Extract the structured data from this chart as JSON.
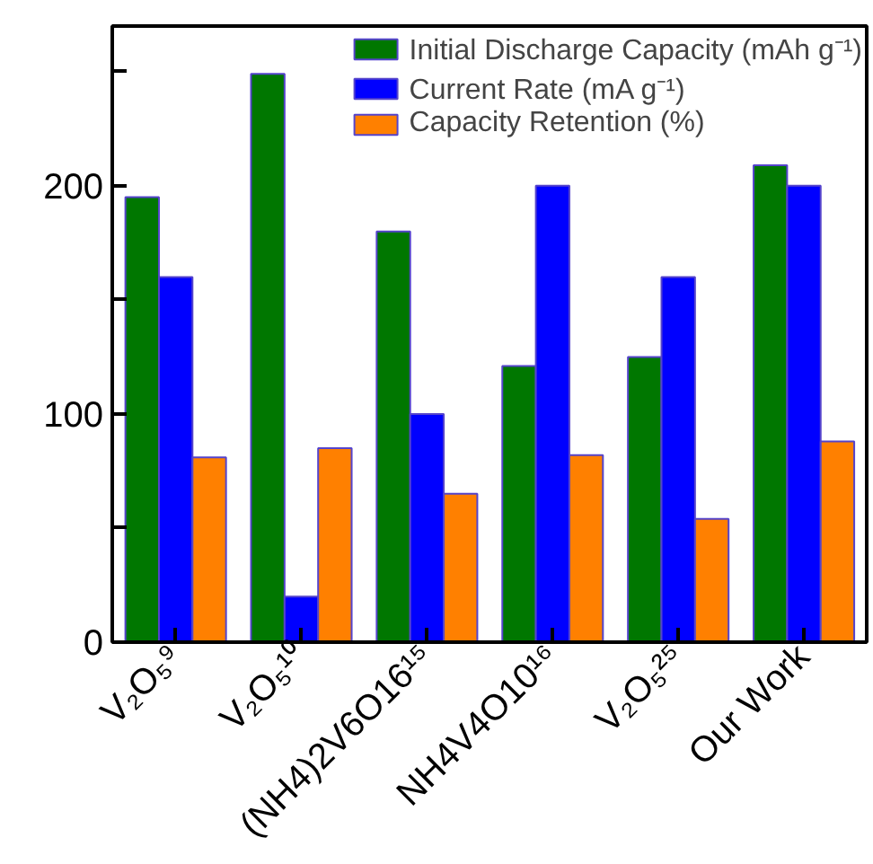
{
  "chart_data": {
    "type": "bar",
    "categories": [
      "V₂O₅⁹",
      "V₂O₅¹⁰",
      "(NH4)2V6O16¹⁵",
      "NH4V4O10¹⁶",
      "V₂O₅²⁵",
      "Our Work"
    ],
    "series": [
      {
        "name": "Initial Discharge Capacity (mAh g⁻¹)",
        "color": "#007700",
        "values": [
          195,
          249,
          180,
          121,
          125,
          209
        ]
      },
      {
        "name": "Current Rate (mA g⁻¹)",
        "color": "#0000ff",
        "values": [
          160,
          20,
          100,
          200,
          160,
          200
        ]
      },
      {
        "name": "Capacity Retention (%)",
        "color": "#ff8000",
        "values": [
          81,
          85,
          65,
          82,
          54,
          88
        ]
      }
    ],
    "ylim": [
      0,
      270
    ],
    "yticks": [
      0,
      {
        "value": 50,
        "label": null
      },
      100,
      {
        "value": 150,
        "label": null
      },
      200,
      {
        "value": 250,
        "label": null
      }
    ],
    "grid": false,
    "legend": "top right"
  }
}
